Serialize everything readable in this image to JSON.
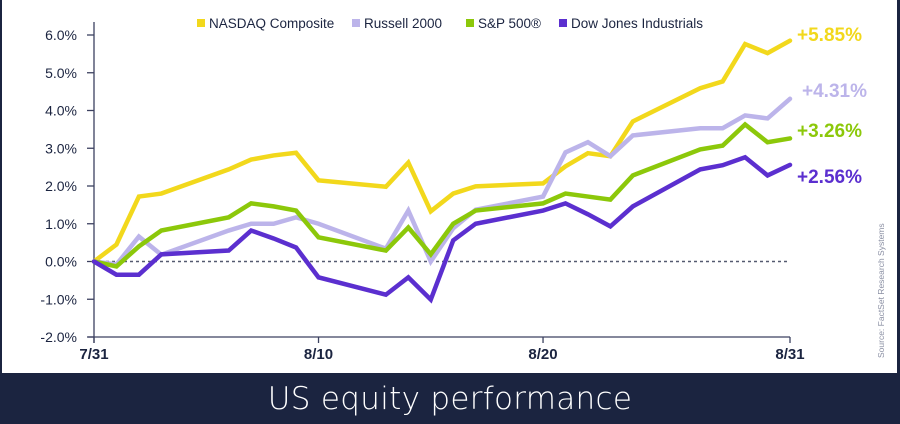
{
  "chart_data": {
    "type": "line",
    "title": "US equity performance",
    "source": "Source: FactSet Research Systems",
    "xlabel": "",
    "ylabel": "",
    "ylim": [
      -2.0,
      6.0
    ],
    "yticks": [
      -2,
      -1,
      0,
      1,
      2,
      3,
      4,
      5,
      6
    ],
    "ytick_labels": [
      "-2.0%",
      "-1.0%",
      "0.0%",
      "1.0%",
      "2.0%",
      "3.0%",
      "4.0%",
      "5.0%",
      "6.0%"
    ],
    "x_day_range": [
      0,
      31
    ],
    "xticks": [
      0,
      10,
      20,
      31
    ],
    "xtick_labels": [
      "7/31",
      "8/10",
      "8/20",
      "8/31"
    ],
    "x_days": [
      0,
      1,
      2,
      3,
      6,
      7,
      8,
      9,
      10,
      13,
      14,
      15,
      16,
      17,
      20,
      21,
      22,
      23,
      24,
      27,
      28,
      29,
      30,
      31
    ],
    "zero_line": "dotted",
    "legend_position": "top",
    "series": [
      {
        "name": "NASDAQ Composite",
        "color": "#f2d81c",
        "end_label": "+5.85%",
        "values": [
          0,
          0.45,
          1.72,
          1.8,
          2.44,
          2.7,
          2.81,
          2.88,
          2.15,
          1.98,
          2.62,
          1.33,
          1.8,
          1.99,
          2.07,
          2.52,
          2.87,
          2.79,
          3.71,
          4.59,
          4.77,
          5.76,
          5.52,
          5.85
        ]
      },
      {
        "name": "Russell 2000",
        "color": "#bcb4ea",
        "end_label": "+4.31%",
        "values": [
          0,
          -0.08,
          0.66,
          0.18,
          0.82,
          1.0,
          1.0,
          1.17,
          1.0,
          0.34,
          1.35,
          0.0,
          0.88,
          1.37,
          1.72,
          2.89,
          3.16,
          2.79,
          3.34,
          3.53,
          3.53,
          3.87,
          3.79,
          4.31
        ]
      },
      {
        "name": "S&P 500®",
        "color": "#8cc80a",
        "end_label": "+3.26%",
        "values": [
          0,
          -0.13,
          0.4,
          0.82,
          1.17,
          1.54,
          1.46,
          1.35,
          0.64,
          0.29,
          0.9,
          0.19,
          1.0,
          1.35,
          1.54,
          1.8,
          1.72,
          1.64,
          2.28,
          2.97,
          3.07,
          3.63,
          3.16,
          3.26
        ]
      },
      {
        "name": "Dow Jones Industrials",
        "color": "#5b2fcf",
        "end_label": "+2.56%",
        "values": [
          0,
          -0.35,
          -0.35,
          0.19,
          0.29,
          0.82,
          0.61,
          0.37,
          -0.42,
          -0.88,
          -0.42,
          -1.01,
          0.56,
          1.0,
          1.35,
          1.54,
          1.25,
          0.93,
          1.46,
          2.44,
          2.55,
          2.76,
          2.28,
          2.56
        ]
      }
    ]
  }
}
